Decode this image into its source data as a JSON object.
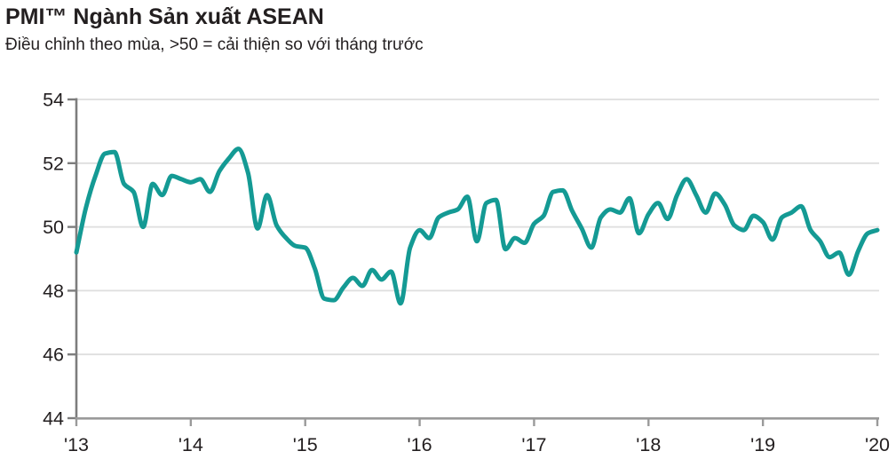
{
  "header": {
    "title": "PMI™ Ngành Sản xuất ASEAN",
    "subtitle": "Điều chỉnh theo mùa, >50 = cải thiện so với tháng trước"
  },
  "colors": {
    "line": "#149A94",
    "grid": "#DEDEDE",
    "axis": "#7D7D7D",
    "x_axis": "#9A9A9A",
    "text": "#231F20",
    "background": "#FFFFFF"
  },
  "chart_data": {
    "type": "line",
    "title": "PMI™ Ngành Sản xuất ASEAN",
    "subtitle": "Điều chỉnh theo mùa, >50 = cải thiện so với tháng trước",
    "xlabel": "",
    "ylabel": "",
    "ylim": [
      44,
      54
    ],
    "y_ticks": [
      44,
      46,
      48,
      50,
      52,
      54
    ],
    "x_tick_labels": [
      "'13",
      "'14",
      "'15",
      "'16",
      "'17",
      "'18",
      "'19",
      "'20"
    ],
    "grid": "horizontal",
    "legend": "none",
    "line_color": "#149A94",
    "series": [
      {
        "name": "PMI Ngành Sản xuất ASEAN",
        "frequency": "monthly",
        "start": "2013-01",
        "end": "2020-01",
        "values": [
          49.2,
          50.6,
          51.6,
          52.3,
          52.35,
          51.35,
          51.1,
          50.0,
          51.35,
          51.0,
          51.6,
          51.5,
          51.4,
          51.5,
          51.1,
          51.75,
          52.15,
          52.45,
          51.7,
          49.95,
          51.0,
          50.05,
          49.65,
          49.4,
          49.35,
          48.7,
          47.75,
          47.7,
          48.1,
          48.4,
          48.15,
          48.65,
          48.35,
          48.6,
          47.6,
          49.35,
          49.9,
          49.65,
          50.3,
          50.45,
          50.55,
          50.95,
          49.55,
          50.75,
          50.85,
          49.3,
          49.65,
          49.5,
          50.1,
          50.35,
          51.1,
          51.15,
          50.5,
          49.95,
          49.35,
          50.3,
          50.55,
          50.45,
          50.9,
          49.8,
          50.4,
          50.75,
          50.25,
          51.0,
          51.5,
          51.0,
          50.45,
          51.05,
          50.7,
          50.05,
          49.9,
          50.35,
          50.15,
          49.6,
          50.3,
          50.45,
          50.65,
          49.9,
          49.55,
          49.05,
          49.2,
          48.5,
          49.25,
          49.8,
          49.9
        ]
      }
    ]
  }
}
